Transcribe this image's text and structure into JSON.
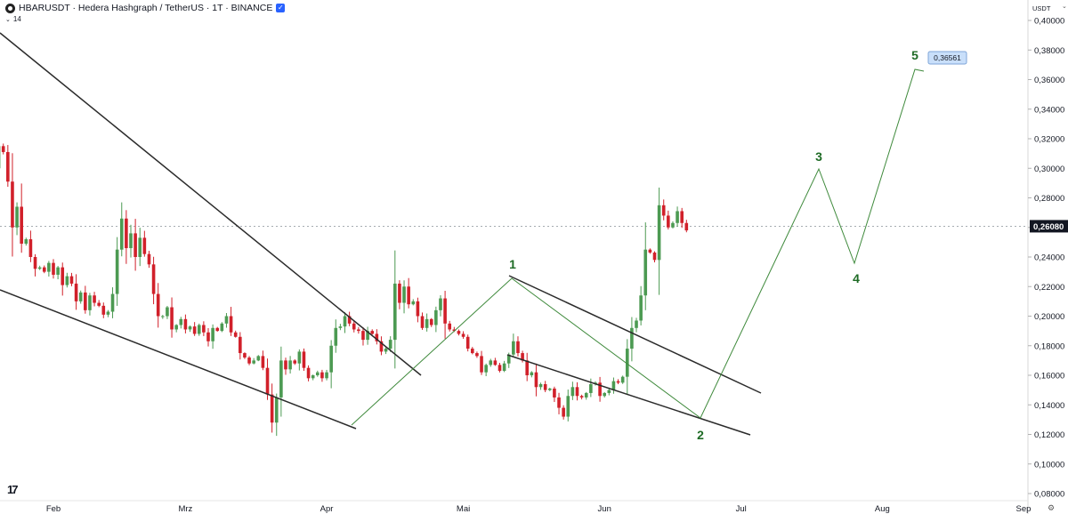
{
  "header": {
    "title": "HBARUSDT · Hedera Hashgraph / TetherUS · 1T · BINANCE",
    "indicator_label": "14",
    "currency": "USDT"
  },
  "colors": {
    "up": "#4c9a52",
    "down": "#d1202a",
    "wave": "#3f8a3c",
    "trend": "#2b2b2b",
    "wave_label": "#1e6b25",
    "price_tag_bg": "#131722",
    "target_box_bg": "#c9dffa",
    "target_box_border": "#7fa6d8"
  },
  "chart_data": {
    "type": "candlestick",
    "symbol": "HBARUSDT",
    "interval": "1T",
    "exchange": "BINANCE",
    "x_axis": {
      "ticks": [
        "Feb",
        "Mrz",
        "Apr",
        "Mai",
        "Jun",
        "Jul",
        "Aug",
        "Sep"
      ],
      "tick_dates": [
        "2024-02-01",
        "2024-03-01",
        "2024-04-01",
        "2024-05-01",
        "2024-06-01",
        "2024-07-01",
        "2024-08-01",
        "2024-09-01"
      ],
      "range": [
        "2024-01-12",
        "2024-09-02"
      ]
    },
    "y_axis": {
      "range": [
        0.075,
        0.408
      ],
      "ticks": [
        "0,40000",
        "0,38000",
        "0,36000",
        "0,34000",
        "0,32000",
        "0,30000",
        "0,28000",
        "0,26000",
        "0,24000",
        "0,22000",
        "0,20000",
        "0,18000",
        "0,16000",
        "0,14000",
        "0,12000",
        "0,10000",
        "0,08000"
      ],
      "tick_values": [
        0.4,
        0.38,
        0.36,
        0.34,
        0.32,
        0.3,
        0.28,
        0.26,
        0.24,
        0.22,
        0.2,
        0.18,
        0.16,
        0.14,
        0.12,
        0.1,
        0.08
      ]
    },
    "last_price": {
      "label": "0,26080",
      "value": 0.2608
    },
    "target_label": {
      "label": "0,36561",
      "value": 0.36561
    },
    "candles_start_date": "2024-01-12",
    "closes": [
      0.335,
      0.322,
      0.315,
      0.331,
      0.326,
      0.33,
      0.313,
      0.3,
      0.315,
      0.311,
      0.291,
      0.26,
      0.274,
      0.249,
      0.252,
      0.24,
      0.232,
      0.233,
      0.23,
      0.236,
      0.228,
      0.233,
      0.221,
      0.227,
      0.222,
      0.21,
      0.216,
      0.204,
      0.214,
      0.209,
      0.207,
      0.201,
      0.203,
      0.215,
      0.245,
      0.266,
      0.246,
      0.256,
      0.24,
      0.253,
      0.242,
      0.235,
      0.215,
      0.2,
      0.2,
      0.206,
      0.191,
      0.194,
      0.198,
      0.191,
      0.193,
      0.188,
      0.194,
      0.189,
      0.183,
      0.192,
      0.19,
      0.195,
      0.2,
      0.189,
      0.186,
      0.175,
      0.172,
      0.168,
      0.17,
      0.173,
      0.165,
      0.147,
      0.128,
      0.145,
      0.17,
      0.164,
      0.17,
      0.168,
      0.176,
      0.165,
      0.158,
      0.16,
      0.162,
      0.158,
      0.162,
      0.18,
      0.192,
      0.193,
      0.2,
      0.195,
      0.191,
      0.19,
      0.184,
      0.19,
      0.188,
      0.183,
      0.176,
      0.178,
      0.184,
      0.222,
      0.209,
      0.22,
      0.208,
      0.21,
      0.2,
      0.192,
      0.198,
      0.194,
      0.204,
      0.212,
      0.195,
      0.191,
      0.19,
      0.188,
      0.186,
      0.178,
      0.175,
      0.173,
      0.162,
      0.167,
      0.17,
      0.167,
      0.163,
      0.168,
      0.174,
      0.183,
      0.175,
      0.17,
      0.16,
      0.162,
      0.152,
      0.154,
      0.15,
      0.151,
      0.145,
      0.138,
      0.132,
      0.146,
      0.152,
      0.146,
      0.145,
      0.148,
      0.154,
      0.155,
      0.146,
      0.148,
      0.15,
      0.156,
      0.155,
      0.159,
      0.178,
      0.192,
      0.197,
      0.214,
      0.245,
      0.243,
      0.238,
      0.275,
      0.268,
      0.26,
      0.263,
      0.271,
      0.263,
      0.258
    ]
  },
  "wave_labels": [
    "1",
    "2",
    "3",
    "4",
    "5"
  ]
}
